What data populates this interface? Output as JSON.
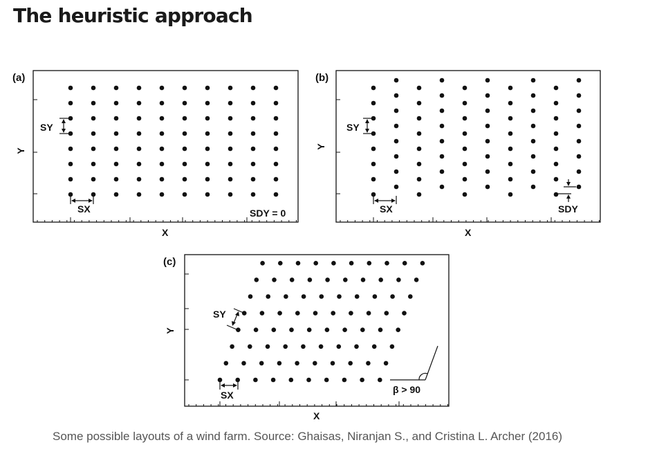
{
  "page": {
    "title": "The heuristic approach",
    "caption": "Some possible layouts of a wind farm. Source: Ghaisas, Niranjan S., and Cristina L. Archer (2016)"
  },
  "panels": {
    "a": {
      "tag": "(a)",
      "x_label": "X",
      "y_label": "Y",
      "sy_label": "SY",
      "sx_label": "SX",
      "note": "SDY = 0"
    },
    "b": {
      "tag": "(b)",
      "x_label": "X",
      "y_label": "Y",
      "sy_label": "SY",
      "sx_label": "SX",
      "sdy_label": "SDY"
    },
    "c": {
      "tag": "(c)",
      "x_label": "X",
      "y_label": "Y",
      "sy_label": "SY",
      "sx_label": "SX",
      "angle_label": "β > 90"
    }
  },
  "colors": {
    "ink": "#111111",
    "caption": "#555555"
  }
}
